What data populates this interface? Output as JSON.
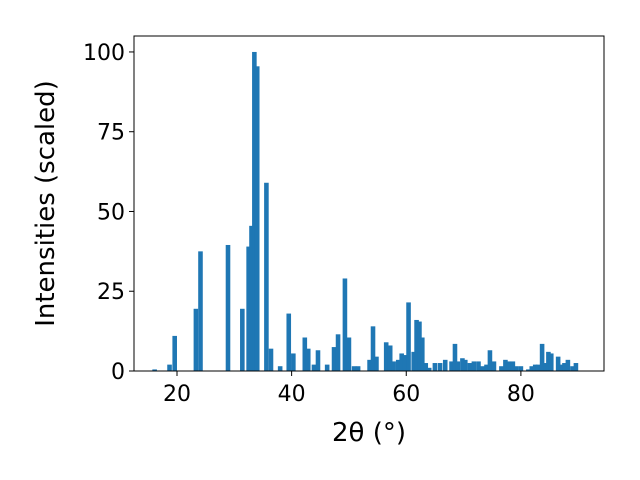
{
  "chart_data": {
    "type": "bar",
    "xlabel": "2θ (°)",
    "ylabel": "Intensities (scaled)",
    "xlim": [
      12.5,
      94.5
    ],
    "ylim": [
      0,
      105
    ],
    "x_ticks": [
      20,
      40,
      60,
      80
    ],
    "y_ticks": [
      0,
      25,
      50,
      75,
      100
    ],
    "bar_color": "#1f77b4",
    "bar_width": 0.8,
    "grid": false,
    "series": [
      {
        "x": [
          16.1,
          18.7,
          19.6,
          23.3,
          24.1,
          28.9,
          31.4,
          32.5,
          33.0,
          33.5,
          34.0,
          35.6,
          36.4,
          38.0,
          39.5,
          40.3,
          42.3,
          42.9,
          43.9,
          44.6,
          46.2,
          47.4,
          48.1,
          49.3,
          50.0,
          50.9,
          51.6,
          53.6,
          54.2,
          54.8,
          56.5,
          57.2,
          57.8,
          58.6,
          59.2,
          59.8,
          60.4,
          61.3,
          61.8,
          62.3,
          62.8,
          63.4,
          64.0,
          65.0,
          65.9,
          66.8,
          67.9,
          68.5,
          69.0,
          69.8,
          70.3,
          71.1,
          71.8,
          72.6,
          73.3,
          74.0,
          74.6,
          75.3,
          76.6,
          77.3,
          77.9,
          78.6,
          79.2,
          80.0,
          81.3,
          81.9,
          82.5,
          83.0,
          83.7,
          84.3,
          84.8,
          85.3,
          86.5,
          87.1,
          87.6,
          88.2,
          89.0,
          89.6
        ],
        "values": [
          0.5,
          2,
          11,
          19.5,
          37.5,
          39.5,
          19.5,
          39,
          45.5,
          100,
          95.5,
          59,
          7,
          1.5,
          18,
          5.5,
          10.5,
          7,
          2,
          6.5,
          2,
          7.5,
          11.5,
          29,
          10.5,
          1.5,
          1.5,
          3.5,
          14,
          4.5,
          9,
          8,
          3,
          3.5,
          5.5,
          5,
          21.5,
          6,
          16,
          15.5,
          10.5,
          2.5,
          1,
          2.5,
          2.5,
          3.5,
          3,
          8.5,
          3,
          4,
          3.5,
          2.5,
          3,
          3,
          1.5,
          2,
          6.5,
          3,
          1.5,
          3.5,
          3,
          3,
          1.5,
          1.5,
          0.5,
          1.5,
          2,
          2,
          8.5,
          2.5,
          6,
          5.5,
          4.5,
          2,
          2.5,
          3.5,
          1.5,
          2.5
        ]
      }
    ]
  }
}
